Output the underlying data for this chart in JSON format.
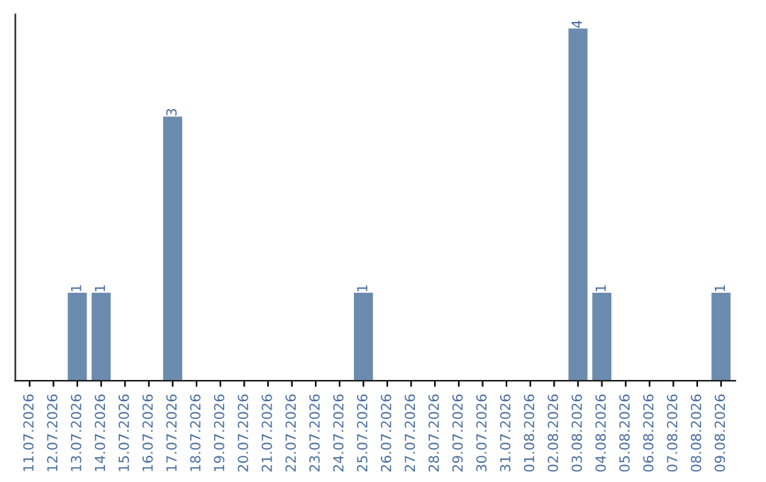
{
  "chart_data": {
    "type": "bar",
    "categories": [
      "11.07.2026",
      "12.07.2026",
      "13.07.2026",
      "14.07.2026",
      "15.07.2026",
      "16.07.2026",
      "17.07.2026",
      "18.07.2026",
      "19.07.2026",
      "20.07.2026",
      "21.07.2026",
      "22.07.2026",
      "23.07.2026",
      "24.07.2026",
      "25.07.2026",
      "26.07.2026",
      "27.07.2026",
      "28.07.2026",
      "29.07.2026",
      "30.07.2026",
      "31.07.2026",
      "01.08.2026",
      "02.08.2026",
      "03.08.2026",
      "04.08.2026",
      "05.08.2026",
      "06.08.2026",
      "07.08.2026",
      "08.08.2026",
      "09.08.2026"
    ],
    "values": [
      0,
      0,
      1,
      1,
      0,
      0,
      3,
      0,
      0,
      0,
      0,
      0,
      0,
      0,
      1,
      0,
      0,
      0,
      0,
      0,
      0,
      0,
      0,
      4,
      1,
      0,
      0,
      0,
      0,
      1
    ],
    "color": "#6b8cae",
    "value_labels": [
      null,
      null,
      "1",
      "1",
      null,
      null,
      "3",
      null,
      null,
      null,
      null,
      null,
      null,
      null,
      "1",
      null,
      null,
      null,
      null,
      null,
      null,
      null,
      null,
      "4",
      "1",
      null,
      null,
      null,
      null,
      "1"
    ],
    "tick_labels": "x",
    "grid": false,
    "legend": false
  }
}
